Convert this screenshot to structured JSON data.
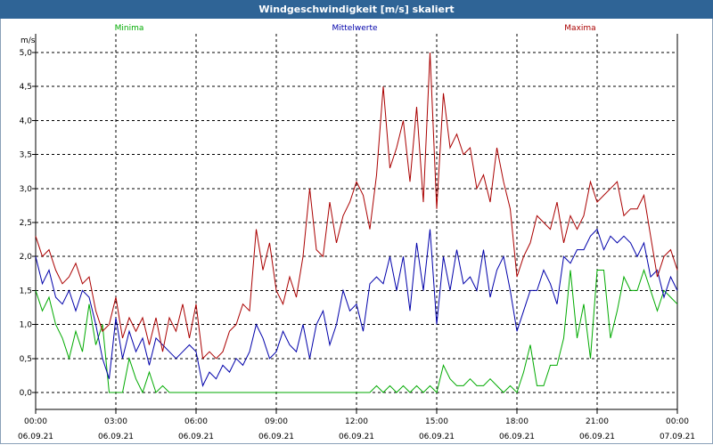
{
  "window": {
    "title": "Windgeschwindigkeit [m/s] skaliert"
  },
  "chart_data": {
    "type": "line",
    "title": "Windgeschwindigkeit [m/s] skaliert",
    "ylabel": "m/s",
    "xlabel": "",
    "ylim": [
      -0.25,
      5.2
    ],
    "yticks": [
      0,
      0.5,
      1,
      1.5,
      2,
      2.5,
      3,
      3.5,
      4,
      4.5,
      5
    ],
    "ytick_labels": [
      "0,0",
      "0,5",
      "1,0",
      "1,5",
      "2,0",
      "2,5",
      "3,0",
      "3,5",
      "4,0",
      "4,5",
      "5,0"
    ],
    "xlim": [
      0,
      24
    ],
    "xticks": [
      0,
      3,
      6,
      9,
      12,
      15,
      18,
      21,
      24
    ],
    "xtick_times": [
      "00:00",
      "03:00",
      "06:00",
      "09:00",
      "12:00",
      "15:00",
      "18:00",
      "21:00",
      "00:00"
    ],
    "xtick_dates": [
      "06.09.21",
      "06.09.21",
      "06.09.21",
      "06.09.21",
      "06.09.21",
      "06.09.21",
      "06.09.21",
      "06.09.21",
      "07.09.21"
    ],
    "grid": true,
    "legend": "top",
    "series": [
      {
        "name": "Minima",
        "color": "#00aa00",
        "x": [
          0,
          0.25,
          0.5,
          0.75,
          1,
          1.25,
          1.5,
          1.75,
          2,
          2.25,
          2.5,
          2.75,
          3,
          3.25,
          3.5,
          3.75,
          4,
          4.25,
          4.5,
          4.75,
          5,
          5.5,
          6,
          6.5,
          7,
          7.5,
          8,
          8.5,
          9,
          9.5,
          10,
          10.5,
          11,
          11.5,
          12,
          12.25,
          12.5,
          12.75,
          13,
          13.25,
          13.5,
          13.75,
          14,
          14.25,
          14.5,
          14.75,
          15,
          15.25,
          15.5,
          15.75,
          16,
          16.25,
          16.5,
          16.75,
          17,
          17.25,
          17.5,
          17.75,
          18,
          18.25,
          18.5,
          18.75,
          19,
          19.25,
          19.5,
          19.75,
          20,
          20.25,
          20.5,
          20.75,
          21,
          21.25,
          21.5,
          21.75,
          22,
          22.25,
          22.5,
          22.75,
          23,
          23.25,
          23.5,
          23.75,
          24
        ],
        "y": [
          1.5,
          1.2,
          1.4,
          1.0,
          0.8,
          0.5,
          0.9,
          0.6,
          1.3,
          0.7,
          1.0,
          0.0,
          0.0,
          0.0,
          0.5,
          0.2,
          0.0,
          0.3,
          0.0,
          0.1,
          0.0,
          0.0,
          0.0,
          0.0,
          0.0,
          0.0,
          0.0,
          0.0,
          0.0,
          0.0,
          0.0,
          0.0,
          0.0,
          0.0,
          0.0,
          0.0,
          0.0,
          0.1,
          0.0,
          0.1,
          0.0,
          0.1,
          0.0,
          0.1,
          0.0,
          0.1,
          0.0,
          0.4,
          0.2,
          0.1,
          0.1,
          0.2,
          0.1,
          0.1,
          0.2,
          0.1,
          0.0,
          0.1,
          0.0,
          0.3,
          0.7,
          0.1,
          0.1,
          0.4,
          0.4,
          0.8,
          1.8,
          0.8,
          1.3,
          0.5,
          1.8,
          1.8,
          0.8,
          1.2,
          1.7,
          1.5,
          1.5,
          1.8,
          1.5,
          1.2,
          1.5,
          1.4,
          1.3
        ],
        "label_pos": "left"
      },
      {
        "name": "Mittelwerte",
        "color": "#0000aa",
        "x": [
          0,
          0.25,
          0.5,
          0.75,
          1,
          1.25,
          1.5,
          1.75,
          2,
          2.25,
          2.5,
          2.75,
          3,
          3.25,
          3.5,
          3.75,
          4,
          4.25,
          4.5,
          4.75,
          5,
          5.25,
          5.5,
          5.75,
          6,
          6.25,
          6.5,
          6.75,
          7,
          7.25,
          7.5,
          7.75,
          8,
          8.25,
          8.5,
          8.75,
          9,
          9.25,
          9.5,
          9.75,
          10,
          10.25,
          10.5,
          10.75,
          11,
          11.25,
          11.5,
          11.75,
          12,
          12.25,
          12.5,
          12.75,
          13,
          13.25,
          13.5,
          13.75,
          14,
          14.25,
          14.5,
          14.75,
          15,
          15.25,
          15.5,
          15.75,
          16,
          16.25,
          16.5,
          16.75,
          17,
          17.25,
          17.5,
          17.75,
          18,
          18.25,
          18.5,
          18.75,
          19,
          19.25,
          19.5,
          19.75,
          20,
          20.25,
          20.5,
          20.75,
          21,
          21.25,
          21.5,
          21.75,
          22,
          22.25,
          22.5,
          22.75,
          23,
          23.25,
          23.5,
          23.75,
          24
        ],
        "y": [
          2.0,
          1.6,
          1.8,
          1.4,
          1.3,
          1.5,
          1.2,
          1.5,
          1.4,
          1.0,
          0.5,
          0.2,
          1.1,
          0.5,
          0.9,
          0.6,
          0.8,
          0.4,
          0.8,
          0.7,
          0.6,
          0.5,
          0.6,
          0.7,
          0.6,
          0.1,
          0.3,
          0.2,
          0.4,
          0.3,
          0.5,
          0.4,
          0.6,
          1.0,
          0.8,
          0.5,
          0.6,
          0.9,
          0.7,
          0.6,
          1.0,
          0.5,
          1.0,
          1.2,
          0.7,
          1.0,
          1.5,
          1.2,
          1.3,
          0.9,
          1.6,
          1.7,
          1.6,
          2.0,
          1.5,
          2.0,
          1.2,
          2.2,
          1.5,
          2.4,
          1.0,
          2.0,
          1.5,
          2.1,
          1.6,
          1.7,
          1.5,
          2.1,
          1.4,
          1.8,
          2.0,
          1.5,
          0.9,
          1.2,
          1.5,
          1.5,
          1.8,
          1.6,
          1.3,
          2.0,
          1.9,
          2.1,
          2.1,
          2.3,
          2.4,
          2.1,
          2.3,
          2.2,
          2.3,
          2.2,
          2.0,
          2.2,
          1.7,
          1.8,
          1.4,
          1.7,
          1.5
        ],
        "label_pos": "center"
      },
      {
        "name": "Maxima",
        "color": "#aa0000",
        "x": [
          0,
          0.25,
          0.5,
          0.75,
          1,
          1.25,
          1.5,
          1.75,
          2,
          2.25,
          2.5,
          2.75,
          3,
          3.25,
          3.5,
          3.75,
          4,
          4.25,
          4.5,
          4.75,
          5,
          5.25,
          5.5,
          5.75,
          6,
          6.25,
          6.5,
          6.75,
          7,
          7.25,
          7.5,
          7.75,
          8,
          8.25,
          8.5,
          8.75,
          9,
          9.25,
          9.5,
          9.75,
          10,
          10.25,
          10.5,
          10.75,
          11,
          11.25,
          11.5,
          11.75,
          12,
          12.25,
          12.5,
          12.75,
          13,
          13.25,
          13.5,
          13.75,
          14,
          14.25,
          14.5,
          14.75,
          15,
          15.25,
          15.5,
          15.75,
          16,
          16.25,
          16.5,
          16.75,
          17,
          17.25,
          17.5,
          17.75,
          18,
          18.25,
          18.5,
          18.75,
          19,
          19.25,
          19.5,
          19.75,
          20,
          20.25,
          20.5,
          20.75,
          21,
          21.25,
          21.5,
          21.75,
          22,
          22.25,
          22.5,
          22.75,
          23,
          23.25,
          23.5,
          23.75,
          24
        ],
        "y": [
          2.3,
          2.0,
          2.1,
          1.8,
          1.6,
          1.7,
          1.9,
          1.6,
          1.7,
          1.2,
          0.9,
          1.0,
          1.4,
          0.8,
          1.1,
          0.9,
          1.1,
          0.7,
          1.1,
          0.6,
          1.1,
          0.9,
          1.3,
          0.8,
          1.3,
          0.5,
          0.6,
          0.5,
          0.6,
          0.9,
          1.0,
          1.3,
          1.2,
          2.4,
          1.8,
          2.2,
          1.5,
          1.3,
          1.7,
          1.4,
          2.0,
          3.0,
          2.1,
          2.0,
          2.8,
          2.2,
          2.6,
          2.8,
          3.1,
          2.9,
          2.4,
          3.2,
          4.5,
          3.3,
          3.6,
          4.0,
          3.1,
          4.2,
          2.8,
          5.0,
          2.7,
          4.4,
          3.6,
          3.8,
          3.5,
          3.6,
          3.0,
          3.2,
          2.8,
          3.6,
          3.1,
          2.7,
          1.7,
          2.0,
          2.2,
          2.6,
          2.5,
          2.4,
          2.8,
          2.2,
          2.6,
          2.4,
          2.6,
          3.1,
          2.8,
          2.9,
          3.0,
          3.1,
          2.6,
          2.7,
          2.7,
          2.9,
          2.3,
          1.7,
          2.0,
          2.1,
          1.8
        ],
        "label_pos": "right"
      }
    ]
  }
}
